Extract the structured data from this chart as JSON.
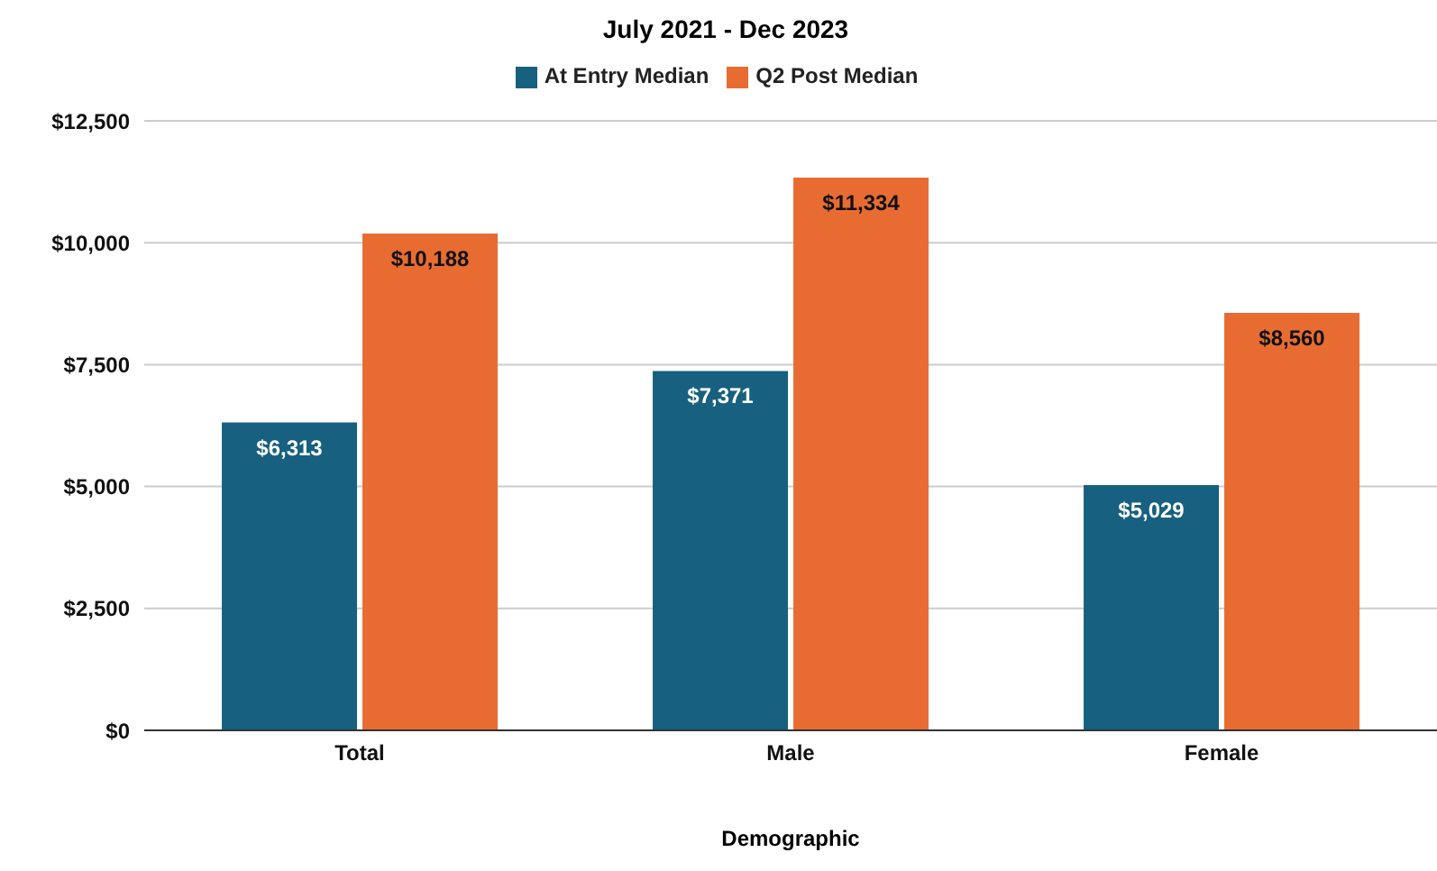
{
  "chart_data": {
    "type": "bar",
    "title": "July 2021 - Dec 2023",
    "xlabel": "Demographic",
    "categories": [
      "Total",
      "Male",
      "Female"
    ],
    "series": [
      {
        "name": "At Entry Median",
        "color": "#17607f",
        "values": [
          6313,
          7371,
          5029
        ],
        "value_labels": [
          "$6,313",
          "$7,371",
          "$5,029"
        ]
      },
      {
        "name": "Q2 Post Median",
        "color": "#e86c32",
        "values": [
          10188,
          11334,
          8560
        ],
        "value_labels": [
          "$10,188",
          "$11,334",
          "$8,560"
        ]
      }
    ],
    "ylim": [
      0,
      12500
    ],
    "yticks": [
      {
        "value": 0,
        "label": "$0"
      },
      {
        "value": 2500,
        "label": "$2,500"
      },
      {
        "value": 5000,
        "label": "$5,000"
      },
      {
        "value": 7500,
        "label": "$7,500"
      },
      {
        "value": 10000,
        "label": "$10,000"
      },
      {
        "value": 12500,
        "label": "$12,500"
      }
    ],
    "grid": "y",
    "legend": "top"
  }
}
